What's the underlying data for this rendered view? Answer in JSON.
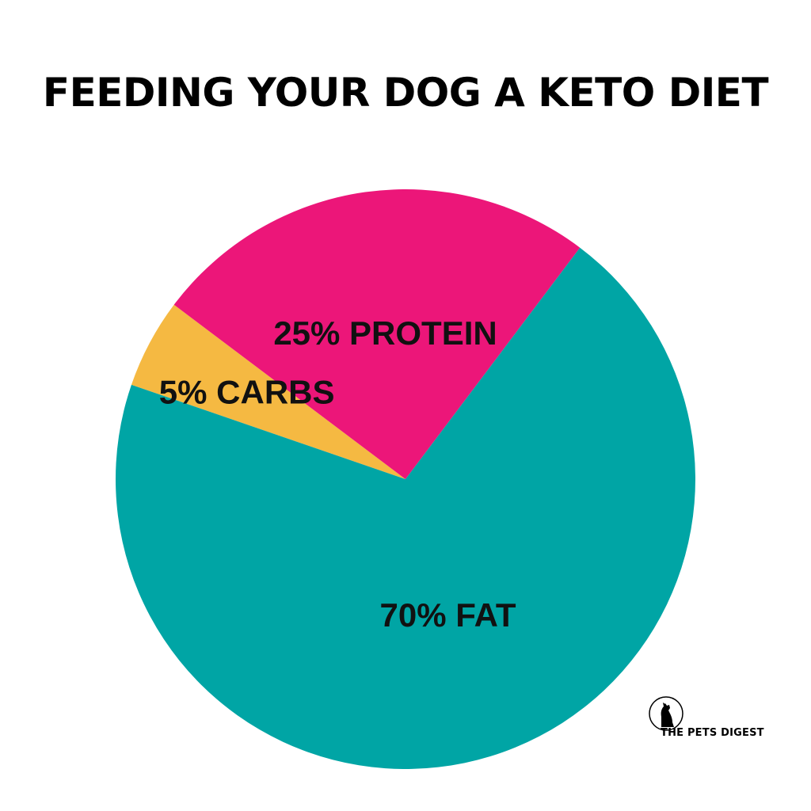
{
  "title": "FEEDING YOUR DOG A KETO DIET",
  "brand": {
    "name": "THE PETS DIGEST",
    "logo_icon": "dog-silhouette-icon"
  },
  "chart_data": {
    "type": "pie",
    "title": "FEEDING YOUR DOG A KETO DIET",
    "legend": "none",
    "slices": [
      {
        "label": "5% CARBS",
        "category": "CARBS",
        "value": 5,
        "color": "#F5B942"
      },
      {
        "label": "25% PROTEIN",
        "category": "PROTEIN",
        "value": 25,
        "color": "#EC1679"
      },
      {
        "label": "70% FAT",
        "category": "FAT",
        "value": 70,
        "color": "#00A5A5"
      }
    ]
  }
}
